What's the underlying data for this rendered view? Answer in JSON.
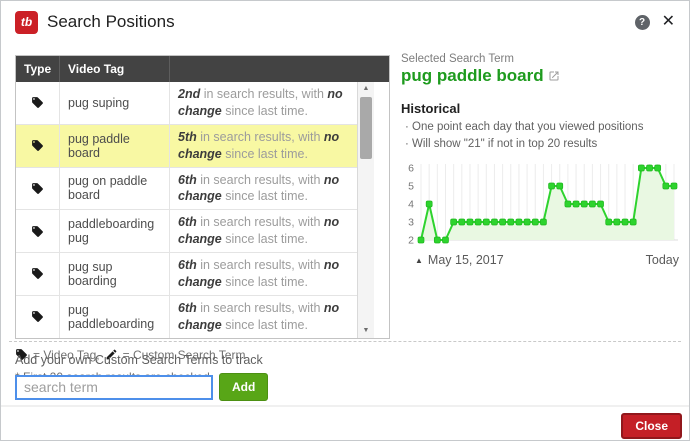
{
  "header": {
    "logo_text": "tb",
    "title": "Search Positions",
    "help_icon": "?",
    "close_icon": "✕"
  },
  "table": {
    "columns": {
      "type": "Type",
      "tag": "Video Tag",
      "desc": ""
    },
    "rows": [
      {
        "tag": "pug suping",
        "position": "2nd",
        "mid": "in search results, with",
        "change": "no change",
        "tail": "since last time."
      },
      {
        "tag": "pug paddle board",
        "position": "5th",
        "mid": "in search results, with",
        "change": "no change",
        "tail": "since last time."
      },
      {
        "tag": "pug on paddle board",
        "position": "6th",
        "mid": "in search results, with",
        "change": "no change",
        "tail": "since last time."
      },
      {
        "tag": "paddleboarding pug",
        "position": "6th",
        "mid": "in search results, with",
        "change": "no change",
        "tail": "since last time."
      },
      {
        "tag": "pug sup boarding",
        "position": "6th",
        "mid": "in search results, with",
        "change": "no change",
        "tail": "since last time."
      },
      {
        "tag": "pug paddleboarding",
        "position": "6th",
        "mid": "in search results, with",
        "change": "no change",
        "tail": "since last time."
      }
    ],
    "scrollbar": {
      "up_arrow": "▲",
      "down_arrow": "▼"
    }
  },
  "legend": {
    "video_tag_label": "= Video Tag,",
    "custom_term_label": "= Custom Search Term"
  },
  "footnote": "* First 20 search results are checked",
  "add_section": {
    "label": "Add your own Custom Search Terms to track",
    "input_placeholder": "search term",
    "button_label": "Add"
  },
  "selected": {
    "label": "Selected Search Term",
    "term": "pug paddle board"
  },
  "historical": {
    "title": "Historical",
    "notes": [
      "· One point each day that you viewed positions",
      "· Will show \"21\" if not in top 20 results"
    ]
  },
  "chart_data": {
    "type": "line",
    "values": [
      2,
      4,
      2,
      2,
      3,
      3,
      3,
      3,
      3,
      3,
      3,
      3,
      3,
      3,
      3,
      3,
      5,
      5,
      4,
      4,
      4,
      4,
      4,
      3,
      3,
      3,
      3,
      6,
      6,
      6,
      5,
      5
    ],
    "ylim": [
      2,
      6
    ],
    "yticks": [
      6,
      5,
      4,
      3,
      2
    ],
    "x_start_marker": "▲",
    "x_start_label": "May 15, 2017",
    "x_end_label": "Today",
    "line_color": "#2ed32e",
    "marker_color": "#2ed32e",
    "fill_color": "#e9f8e2",
    "grid": true,
    "legend_position": "none",
    "title": ""
  },
  "footer": {
    "close_label": "Close"
  }
}
